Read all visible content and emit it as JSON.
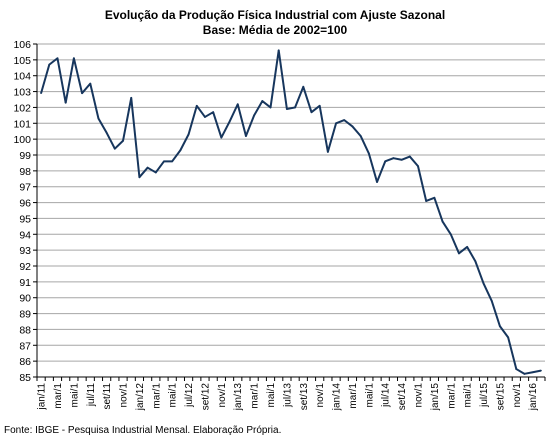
{
  "chart_data": {
    "type": "line",
    "title": "Evolução da Produção Física Industrial com Ajuste Sazonal",
    "subtitle": "Base: Média de 2002=100",
    "xlabel": "",
    "ylabel": "",
    "ylim": [
      85,
      106
    ],
    "y_ticks": [
      85,
      86,
      87,
      88,
      89,
      90,
      91,
      92,
      93,
      94,
      95,
      96,
      97,
      98,
      99,
      100,
      101,
      102,
      103,
      104,
      105,
      106
    ],
    "grid": true,
    "legend": "none",
    "line_color": "#17365d",
    "grid_color": "#a6a6a6",
    "x_tick_labels": [
      "jan/11",
      "mar/1",
      "mai/1",
      "jul/11",
      "set/11",
      "nov/1",
      "jan/12",
      "mar/1",
      "mai/1",
      "jul/12",
      "set/12",
      "nov/1",
      "jan/13",
      "mar/1",
      "mai/1",
      "jul/13",
      "set/13",
      "nov/1",
      "jan/14",
      "mar/1",
      "mai/1",
      "jul/14",
      "set/14",
      "nov/1",
      "jan/15",
      "mar/1",
      "mai/1",
      "jul/15",
      "set/15",
      "nov/1",
      "jan/16"
    ],
    "x": [
      "jan/11",
      "fev/11",
      "mar/11",
      "abr/11",
      "mai/11",
      "jun/11",
      "jul/11",
      "ago/11",
      "set/11",
      "out/11",
      "nov/11",
      "dez/11",
      "jan/12",
      "fev/12",
      "mar/12",
      "abr/12",
      "mai/12",
      "jun/12",
      "jul/12",
      "ago/12",
      "set/12",
      "out/12",
      "nov/12",
      "dez/12",
      "jan/13",
      "fev/13",
      "mar/13",
      "abr/13",
      "mai/13",
      "jun/13",
      "jul/13",
      "ago/13",
      "set/13",
      "out/13",
      "nov/13",
      "dez/13",
      "jan/14",
      "fev/14",
      "mar/14",
      "abr/14",
      "mai/14",
      "jun/14",
      "jul/14",
      "ago/14",
      "set/14",
      "out/14",
      "nov/14",
      "dez/14",
      "jan/15",
      "fev/15",
      "mar/15",
      "abr/15",
      "mai/15",
      "jun/15",
      "jul/15",
      "ago/15",
      "set/15",
      "out/15",
      "nov/15",
      "dez/15",
      "jan/16",
      "fev/16"
    ],
    "series": [
      {
        "values": [
          102.9,
          104.7,
          105.1,
          102.3,
          105.1,
          102.9,
          103.5,
          101.3,
          100.4,
          99.4,
          99.9,
          102.6,
          97.6,
          98.2,
          97.9,
          98.6,
          98.6,
          99.3,
          100.3,
          102.1,
          101.4,
          101.7,
          100.1,
          101.1,
          102.2,
          100.2,
          101.5,
          102.4,
          102.0,
          105.6,
          101.9,
          102.0,
          103.3,
          101.7,
          102.1,
          99.2,
          101.0,
          101.2,
          100.8,
          100.2,
          99.1,
          97.3,
          98.6,
          98.8,
          98.7,
          98.9,
          98.3,
          96.1,
          96.3,
          94.8,
          94.0,
          92.8,
          93.2,
          92.3,
          90.9,
          89.8,
          88.2,
          87.5,
          85.5,
          85.2,
          85.3,
          85.4
        ]
      }
    ]
  },
  "footer": {
    "source": "Fonte: IBGE - Pesquisa Industrial Mensal. Elaboração Própria."
  }
}
